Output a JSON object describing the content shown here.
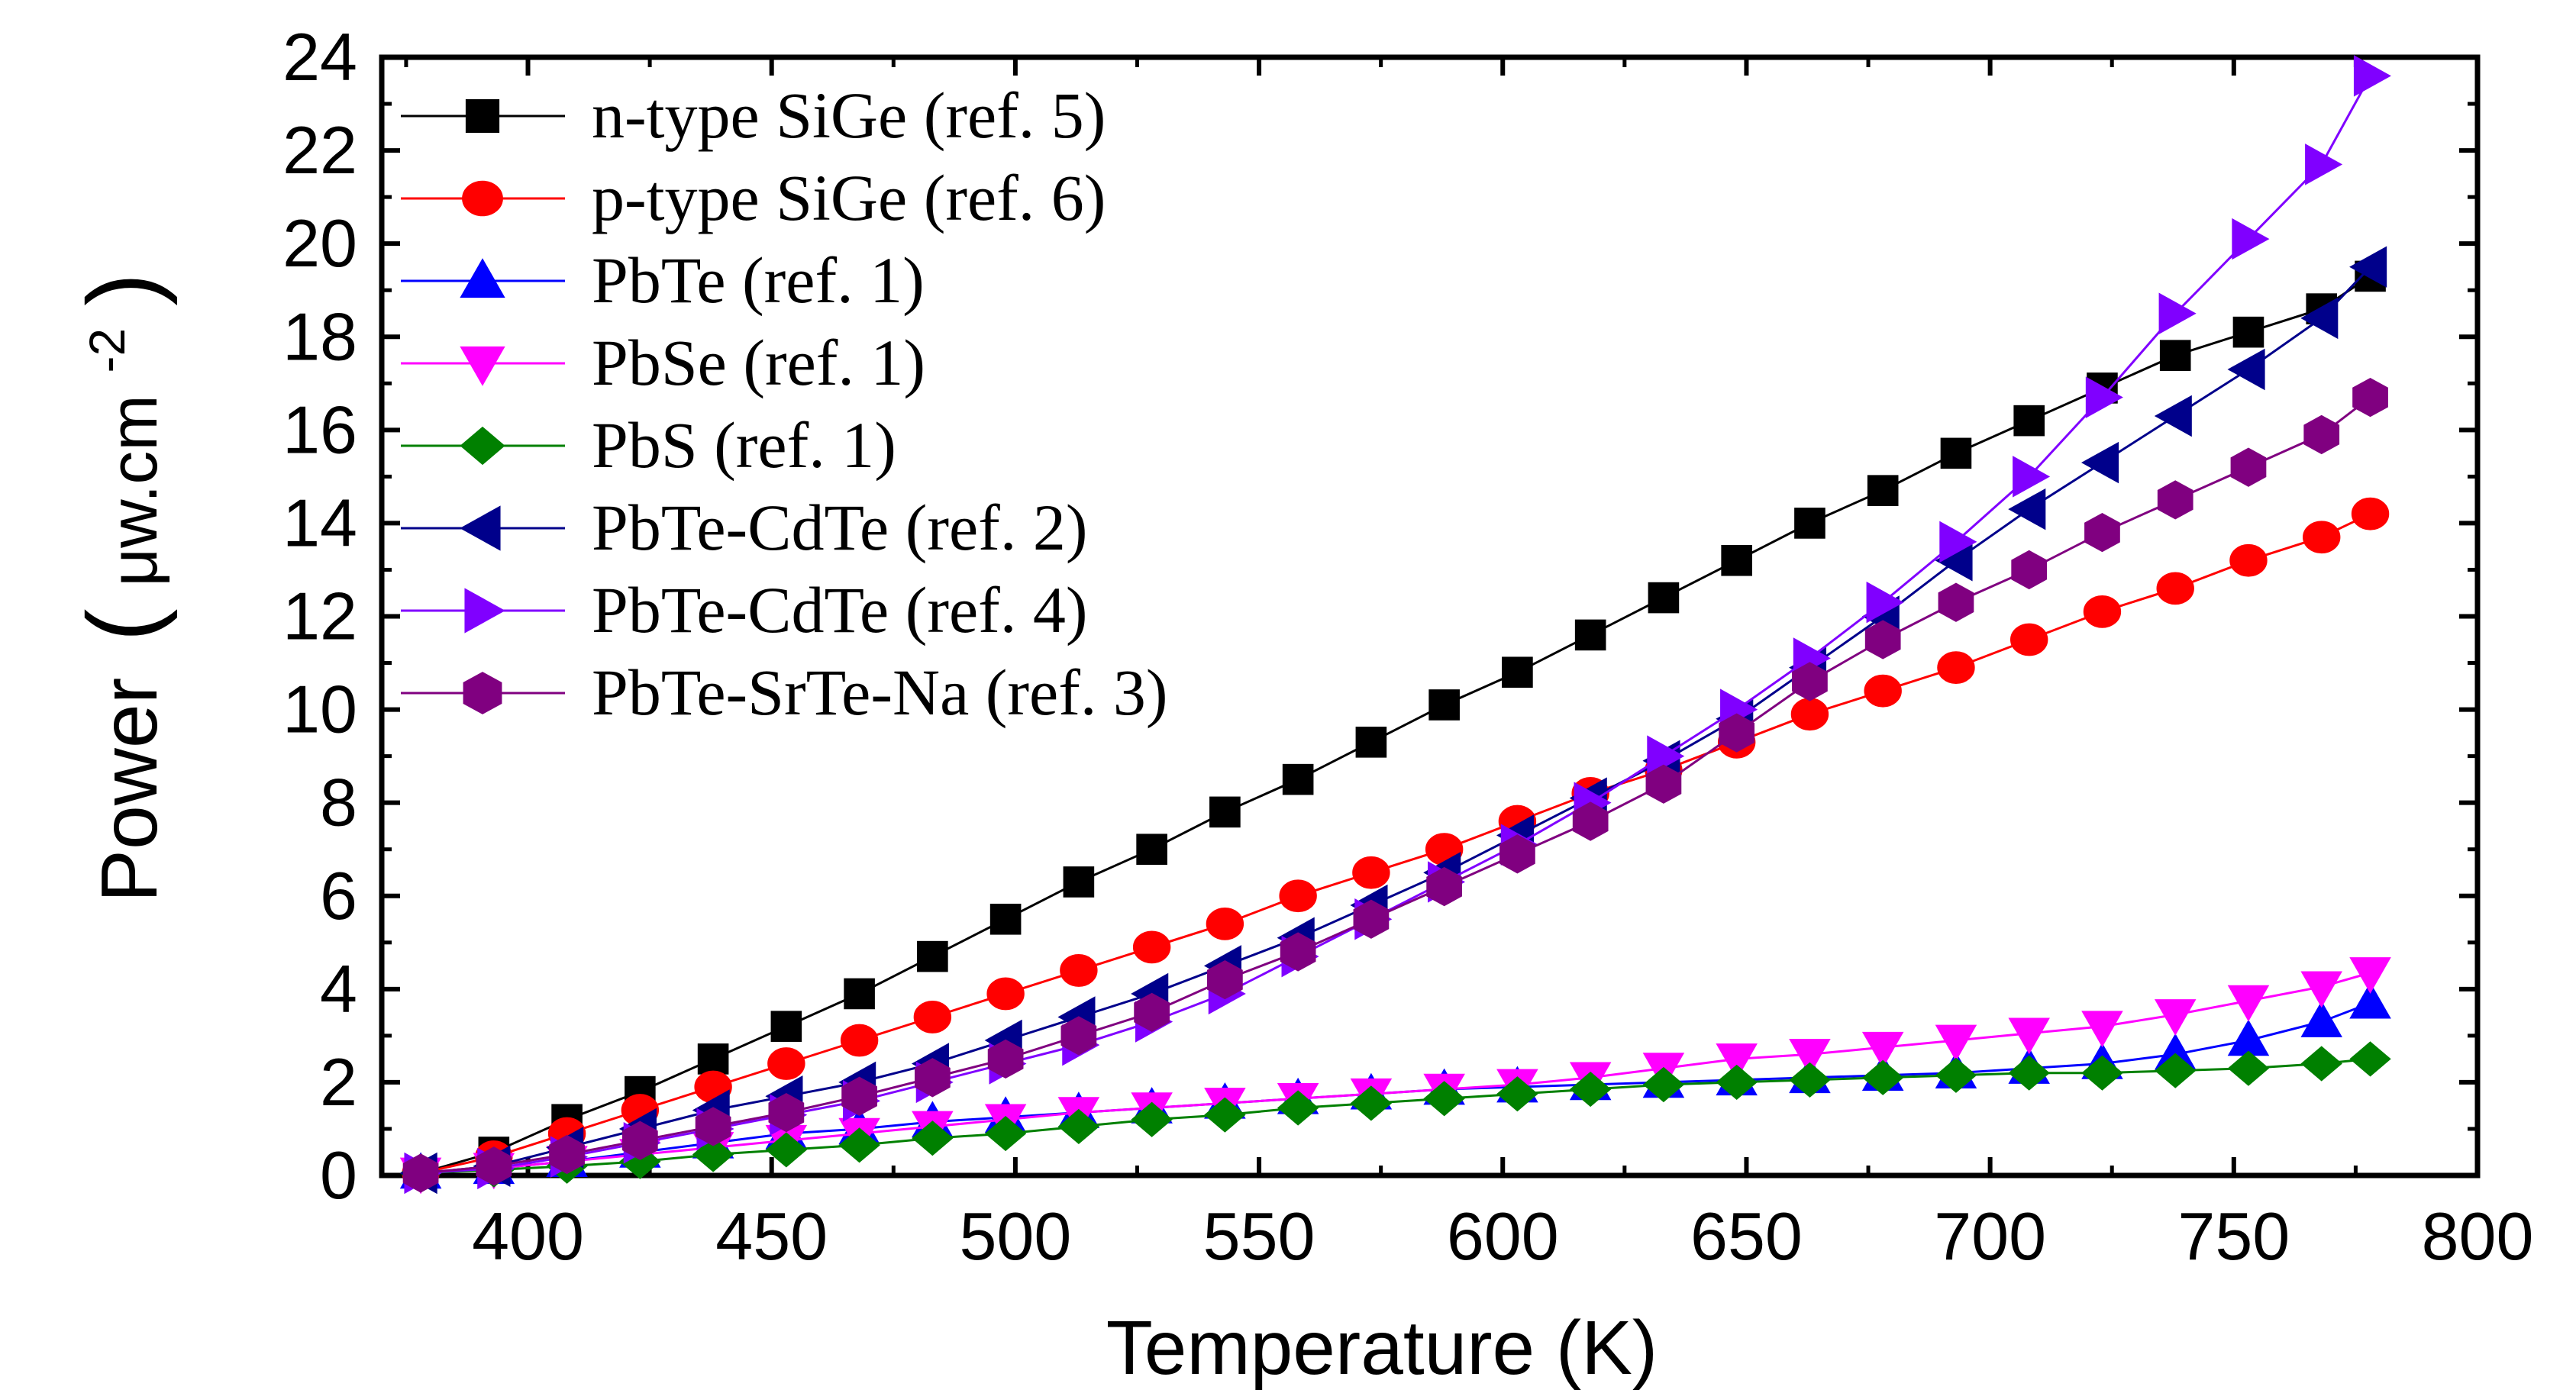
{
  "chart_data": {
    "type": "line",
    "xlabel": "Temperature (K)",
    "ylabel": "Power",
    "ylabel_unit": "μw.cm",
    "ylabel_unit_exp": "-2",
    "xlim": [
      370,
      800
    ],
    "ylim": [
      0,
      24
    ],
    "xticks": [
      400,
      450,
      500,
      550,
      600,
      650,
      700,
      750,
      800
    ],
    "yticks": [
      0,
      2,
      4,
      6,
      8,
      10,
      12,
      14,
      16,
      18,
      20,
      22,
      24
    ],
    "grid": false,
    "legend_position": "top-left",
    "x": [
      378,
      393,
      408,
      423,
      438,
      453,
      468,
      483,
      498,
      513,
      528,
      543,
      558,
      573,
      588,
      603,
      618,
      633,
      648,
      663,
      678,
      693,
      708,
      723,
      738,
      753,
      768,
      778
    ],
    "series": [
      {
        "name": "n-type SiGe (ref. 5)",
        "color": "#000000",
        "marker": "square",
        "values": [
          0.05,
          0.5,
          1.2,
          1.8,
          2.5,
          3.2,
          3.9,
          4.7,
          5.5,
          6.3,
          7.0,
          7.8,
          8.5,
          9.3,
          10.1,
          10.8,
          11.6,
          12.4,
          13.2,
          14.0,
          14.7,
          15.5,
          16.2,
          16.9,
          17.6,
          18.1,
          18.6,
          19.3
        ]
      },
      {
        "name": "p-type SiGe (ref. 6)",
        "color": "#ff0000",
        "marker": "circle",
        "values": [
          0.05,
          0.4,
          0.9,
          1.4,
          1.9,
          2.4,
          2.9,
          3.4,
          3.9,
          4.4,
          4.9,
          5.4,
          6.0,
          6.5,
          7.0,
          7.6,
          8.2,
          8.7,
          9.3,
          9.9,
          10.4,
          10.9,
          11.5,
          12.1,
          12.6,
          13.2,
          13.7,
          14.2
        ]
      },
      {
        "name": "PbTe (ref. 1)",
        "color": "#0000ff",
        "marker": "triangle-up",
        "values": [
          0.05,
          0.15,
          0.3,
          0.5,
          0.7,
          0.9,
          1.0,
          1.15,
          1.25,
          1.35,
          1.45,
          1.55,
          1.65,
          1.75,
          1.85,
          1.9,
          1.95,
          2.0,
          2.05,
          2.1,
          2.15,
          2.2,
          2.3,
          2.4,
          2.6,
          2.9,
          3.3,
          3.7
        ]
      },
      {
        "name": "PbSe (ref. 1)",
        "color": "#ff00ff",
        "marker": "triangle-down",
        "values": [
          0.05,
          0.15,
          0.3,
          0.45,
          0.6,
          0.75,
          0.9,
          1.05,
          1.2,
          1.35,
          1.45,
          1.55,
          1.65,
          1.75,
          1.85,
          1.95,
          2.1,
          2.3,
          2.5,
          2.6,
          2.75,
          2.9,
          3.05,
          3.2,
          3.45,
          3.75,
          4.05,
          4.35
        ]
      },
      {
        "name": "PbS (ref. 1)",
        "color": "#008000",
        "marker": "diamond",
        "values": [
          0.05,
          0.12,
          0.2,
          0.3,
          0.45,
          0.55,
          0.65,
          0.8,
          0.9,
          1.05,
          1.2,
          1.3,
          1.45,
          1.55,
          1.65,
          1.75,
          1.85,
          1.95,
          2.0,
          2.05,
          2.1,
          2.15,
          2.2,
          2.2,
          2.25,
          2.3,
          2.4,
          2.5
        ]
      },
      {
        "name": "PbTe-CdTe (ref. 2)",
        "color": "#00008b",
        "marker": "triangle-left",
        "values": [
          0.05,
          0.2,
          0.6,
          1.0,
          1.4,
          1.7,
          2.0,
          2.4,
          2.9,
          3.4,
          3.9,
          4.5,
          5.1,
          5.8,
          6.5,
          7.3,
          8.1,
          8.9,
          9.8,
          10.9,
          12.0,
          13.2,
          14.3,
          15.3,
          16.3,
          17.3,
          18.4,
          19.5
        ]
      },
      {
        "name": "PbTe-CdTe (ref. 4)",
        "color": "#8000ff",
        "marker": "triangle-right",
        "values": [
          0.05,
          0.15,
          0.4,
          0.7,
          1.0,
          1.3,
          1.6,
          2.0,
          2.4,
          2.8,
          3.3,
          3.9,
          4.7,
          5.5,
          6.3,
          7.1,
          8.0,
          9.0,
          10.0,
          11.1,
          12.3,
          13.6,
          15.0,
          16.7,
          18.5,
          20.1,
          21.7,
          23.6
        ]
      },
      {
        "name": "PbTe-SrTe-Na (ref. 3)",
        "color": "#800080",
        "marker": "hexagon",
        "values": [
          0.05,
          0.2,
          0.45,
          0.75,
          1.05,
          1.35,
          1.7,
          2.1,
          2.5,
          3.0,
          3.5,
          4.2,
          4.8,
          5.5,
          6.2,
          6.9,
          7.6,
          8.4,
          9.5,
          10.6,
          11.5,
          12.3,
          13.0,
          13.8,
          14.5,
          15.2,
          15.9,
          16.7
        ]
      }
    ]
  }
}
